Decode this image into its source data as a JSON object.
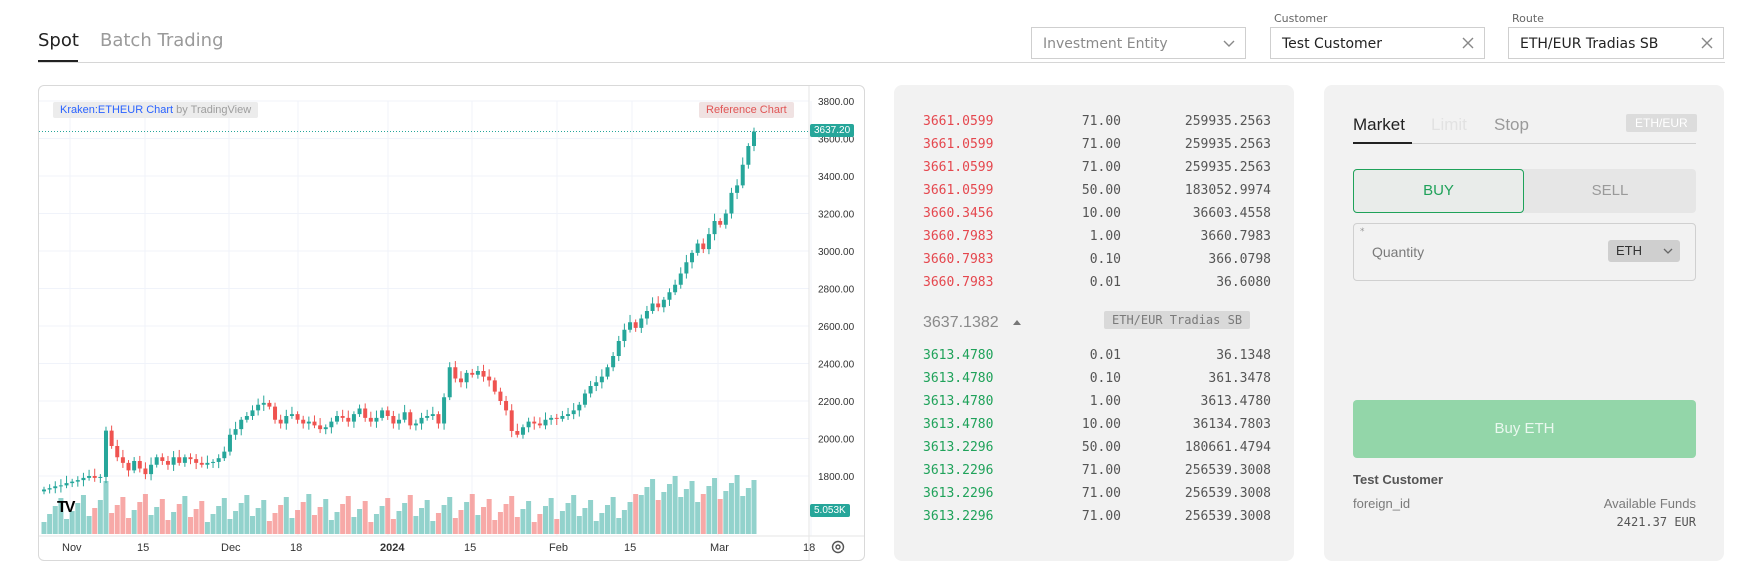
{
  "header": {
    "tabs": [
      {
        "label": "Spot",
        "active": true
      },
      {
        "label": "Batch Trading",
        "active": false
      }
    ],
    "investment_entity": {
      "placeholder": "Investment Entity"
    },
    "customer": {
      "label": "Customer",
      "value": "Test Customer"
    },
    "route": {
      "label": "Route",
      "value": "ETH/EUR Tradias SB"
    }
  },
  "chart": {
    "source_link": "Kraken:ETHEUR Chart",
    "source_by": "by TradingView",
    "reference_label": "Reference Chart",
    "last_price_tag": "3637.20",
    "volume_tag": "5.053K",
    "logo": "TV",
    "settings_icon": "gear-icon"
  },
  "chart_data": {
    "type": "candlestick",
    "title": "Kraken:ETHEUR Chart",
    "y_ticks": [
      "3800.00",
      "3600.00",
      "3400.00",
      "3200.00",
      "3000.00",
      "2800.00",
      "2600.00",
      "2400.00",
      "2200.00",
      "2000.00",
      "1800.00"
    ],
    "x_ticks": [
      "Nov",
      "15",
      "Dec",
      "18",
      "2024",
      "15",
      "Feb",
      "15",
      "Mar",
      "18"
    ],
    "ylim": [
      1800,
      3800
    ],
    "last_price": 3637.2,
    "last_volume": "5.053K",
    "up_color": "#26a69a",
    "down_color": "#ef5350",
    "close_series": [
      1728,
      1735,
      1745,
      1750,
      1762,
      1770,
      1778,
      1790,
      1800,
      1790,
      1795,
      2042,
      1960,
      1900,
      1870,
      1830,
      1880,
      1840,
      1810,
      1860,
      1900,
      1880,
      1860,
      1900,
      1870,
      1900,
      1890,
      1870,
      1860,
      1870,
      1875,
      1895,
      1930,
      2020,
      2050,
      2100,
      2120,
      2150,
      2180,
      2190,
      2170,
      2100,
      2080,
      2120,
      2130,
      2100,
      2080,
      2090,
      2070,
      2050,
      2060,
      2090,
      2120,
      2110,
      2090,
      2130,
      2160,
      2110,
      2090,
      2110,
      2150,
      2120,
      2080,
      2100,
      2140,
      2070,
      2080,
      2110,
      2120,
      2130,
      2080,
      2220,
      2380,
      2320,
      2300,
      2350,
      2340,
      2360,
      2330,
      2310,
      2250,
      2200,
      2150,
      2040,
      2020,
      2060,
      2090,
      2080,
      2070,
      2100,
      2110,
      2105,
      2120,
      2130,
      2150,
      2180,
      2240,
      2280,
      2300,
      2330,
      2380,
      2440,
      2520,
      2580,
      2620,
      2590,
      2640,
      2680,
      2720,
      2700,
      2740,
      2780,
      2820,
      2880,
      2940,
      2990,
      3040,
      3010,
      3090,
      3160,
      3140,
      3200,
      3310,
      3350,
      3460,
      3560,
      3637
    ]
  },
  "orderbook": {
    "asks": [
      {
        "price": "3661.0599",
        "qty": "71.00",
        "total": "259935.2563"
      },
      {
        "price": "3661.0599",
        "qty": "71.00",
        "total": "259935.2563"
      },
      {
        "price": "3661.0599",
        "qty": "71.00",
        "total": "259935.2563"
      },
      {
        "price": "3661.0599",
        "qty": "50.00",
        "total": "183052.9974"
      },
      {
        "price": "3660.3456",
        "qty": "10.00",
        "total": "36603.4558"
      },
      {
        "price": "3660.7983",
        "qty": "1.00",
        "total": "3660.7983"
      },
      {
        "price": "3660.7983",
        "qty": "0.10",
        "total": "366.0798"
      },
      {
        "price": "3660.7983",
        "qty": "0.01",
        "total": "36.6080"
      }
    ],
    "mid_price": "3637.1382",
    "route_badge": "ETH/EUR Tradias SB",
    "bids": [
      {
        "price": "3613.4780",
        "qty": "0.01",
        "total": "36.1348"
      },
      {
        "price": "3613.4780",
        "qty": "0.10",
        "total": "361.3478"
      },
      {
        "price": "3613.4780",
        "qty": "1.00",
        "total": "3613.4780"
      },
      {
        "price": "3613.4780",
        "qty": "10.00",
        "total": "36134.7803"
      },
      {
        "price": "3613.2296",
        "qty": "50.00",
        "total": "180661.4794"
      },
      {
        "price": "3613.2296",
        "qty": "71.00",
        "total": "256539.3008"
      },
      {
        "price": "3613.2296",
        "qty": "71.00",
        "total": "256539.3008"
      },
      {
        "price": "3613.2296",
        "qty": "71.00",
        "total": "256539.3008"
      }
    ]
  },
  "order": {
    "tabs": [
      {
        "label": "Market",
        "active": true
      },
      {
        "label": "Limit",
        "active": false
      },
      {
        "label": "Stop",
        "active": false
      }
    ],
    "pair": "ETH/EUR",
    "buy_label": "BUY",
    "sell_label": "SELL",
    "quantity_star": "*",
    "quantity_label": "Quantity",
    "quantity_unit": "ETH",
    "submit_label": "Buy ETH",
    "customer_name": "Test Customer",
    "foreign_id_label": "foreign_id",
    "available_funds_label": "Available Funds",
    "available_funds_value": "2421.37 EUR"
  }
}
